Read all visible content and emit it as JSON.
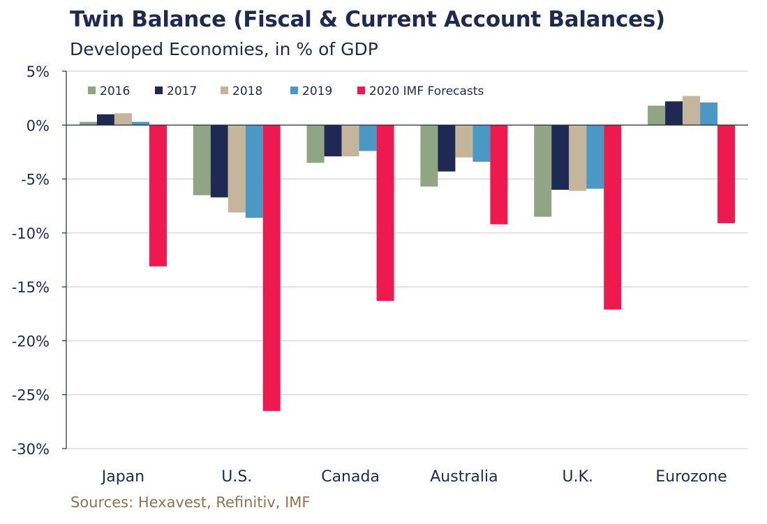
{
  "title": "Twin Balance (Fiscal & Current Account Balances)",
  "subtitle": "Developed Economies, in % of GDP",
  "source": "Sources: Hexavest, Refinitiv, IMF",
  "chart_data": {
    "type": "bar",
    "title": "Twin Balance (Fiscal & Current Account Balances)",
    "subtitle": "Developed Economies, in % of GDP",
    "xlabel": "",
    "ylabel": "",
    "ylim": [
      -30,
      5
    ],
    "yticks": [
      5,
      0,
      -5,
      -10,
      -15,
      -20,
      -25,
      -30
    ],
    "ytick_labels": [
      "5%",
      "0%",
      "-5%",
      "-10%",
      "-15%",
      "-20%",
      "-25%",
      "-30%"
    ],
    "grid": "horizontal",
    "legend_position": "top-left",
    "categories": [
      "Japan",
      "U.S.",
      "Canada",
      "Australia",
      "U.K.",
      "Eurozone"
    ],
    "series": [
      {
        "name": "2016",
        "color": "#8fa583",
        "values": [
          0.3,
          -6.5,
          -3.5,
          -5.7,
          -8.5,
          1.8
        ]
      },
      {
        "name": "2017",
        "color": "#1e2a52",
        "values": [
          1.0,
          -6.7,
          -2.9,
          -4.3,
          -6.0,
          2.2
        ]
      },
      {
        "name": "2018",
        "color": "#c4b59b",
        "values": [
          1.1,
          -8.1,
          -2.9,
          -3.0,
          -6.1,
          2.7
        ]
      },
      {
        "name": "2019",
        "color": "#4a98c4",
        "values": [
          0.3,
          -8.6,
          -2.4,
          -3.4,
          -5.9,
          2.1
        ]
      },
      {
        "name": "2020 IMF Forecasts",
        "color": "#ee1a4f",
        "values": [
          -13.1,
          -26.5,
          -16.3,
          -9.2,
          -17.1,
          -9.1
        ]
      }
    ]
  }
}
